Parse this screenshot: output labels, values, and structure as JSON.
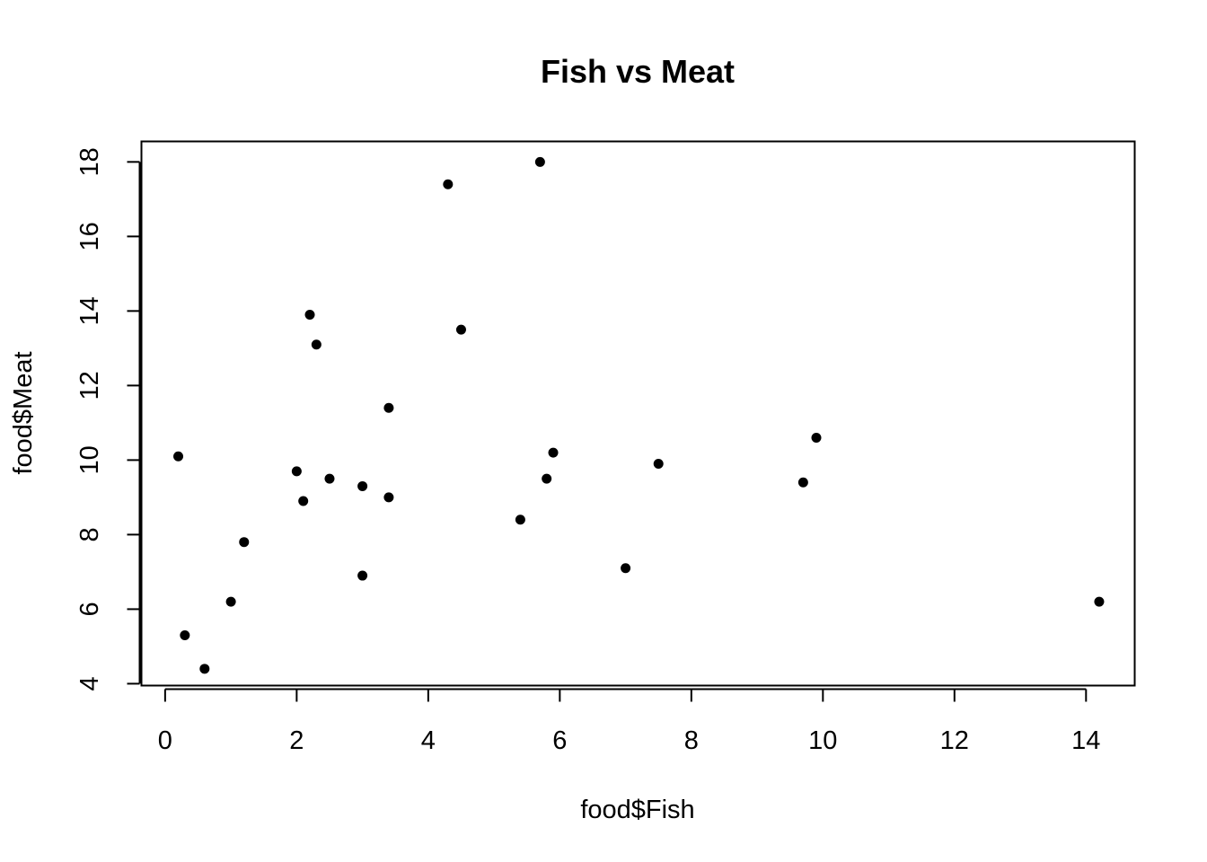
{
  "chart_data": {
    "type": "scatter",
    "title": "Fish vs Meat",
    "xlabel": "food$Fish",
    "ylabel": "food$Meat",
    "xlim": [
      -0.36,
      14.74
    ],
    "ylim": [
      3.95,
      18.55
    ],
    "xticks": [
      0,
      2,
      4,
      6,
      8,
      10,
      12,
      14
    ],
    "yticks": [
      4,
      6,
      8,
      10,
      12,
      14,
      16,
      18
    ],
    "grid": false,
    "legend": "none",
    "point_color": "#000000",
    "points": [
      {
        "x": 0.2,
        "y": 10.1
      },
      {
        "x": 0.3,
        "y": 5.3
      },
      {
        "x": 0.6,
        "y": 4.4
      },
      {
        "x": 1.0,
        "y": 6.2
      },
      {
        "x": 1.2,
        "y": 7.8
      },
      {
        "x": 2.0,
        "y": 9.7
      },
      {
        "x": 2.1,
        "y": 8.9
      },
      {
        "x": 2.2,
        "y": 13.9
      },
      {
        "x": 2.3,
        "y": 13.1
      },
      {
        "x": 2.5,
        "y": 9.5
      },
      {
        "x": 3.0,
        "y": 9.3
      },
      {
        "x": 3.0,
        "y": 6.9
      },
      {
        "x": 3.4,
        "y": 11.4
      },
      {
        "x": 3.4,
        "y": 9.0
      },
      {
        "x": 4.3,
        "y": 17.4
      },
      {
        "x": 4.5,
        "y": 13.5
      },
      {
        "x": 5.4,
        "y": 8.4
      },
      {
        "x": 5.7,
        "y": 18.0
      },
      {
        "x": 5.8,
        "y": 9.5
      },
      {
        "x": 5.9,
        "y": 10.2
      },
      {
        "x": 7.0,
        "y": 7.1
      },
      {
        "x": 7.5,
        "y": 9.9
      },
      {
        "x": 9.7,
        "y": 9.4
      },
      {
        "x": 9.9,
        "y": 10.6
      },
      {
        "x": 14.2,
        "y": 6.2
      }
    ]
  }
}
